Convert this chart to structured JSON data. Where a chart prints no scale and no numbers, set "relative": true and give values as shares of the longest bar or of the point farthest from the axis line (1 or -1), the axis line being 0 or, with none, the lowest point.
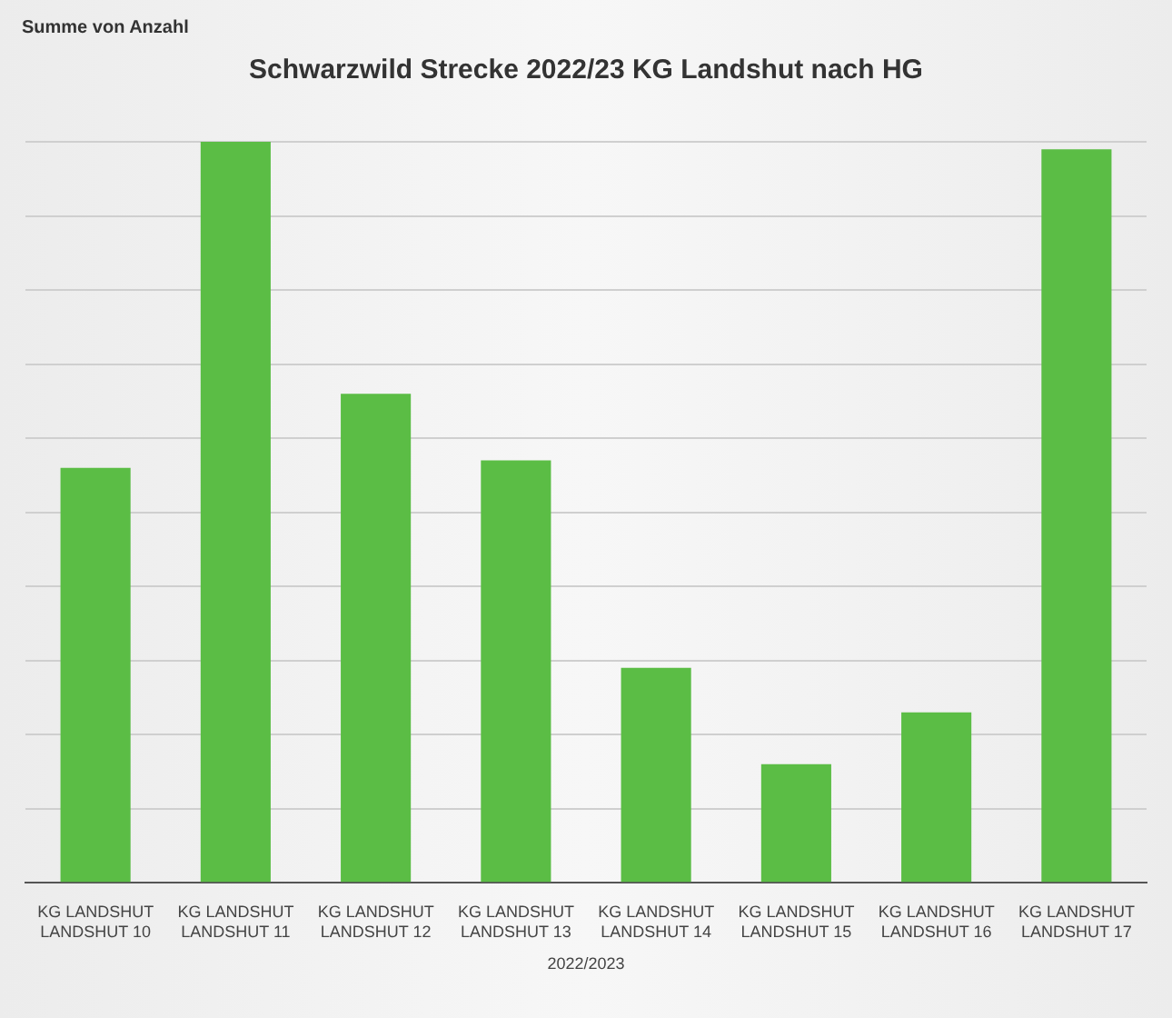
{
  "chart_data": {
    "type": "bar",
    "title": "Schwarzwild Strecke 2022/23 KG Landshut nach HG",
    "xlabel": "2022/2023",
    "annotations": [
      "Summe von Anzahl"
    ],
    "categories": [
      "KG LANDSHUT\nLANDSHUT 10",
      "KG LANDSHUT\nLANDSHUT 11",
      "KG LANDSHUT\nLANDSHUT 12",
      "KG LANDSHUT\nLANDSHUT 13",
      "KG LANDSHUT\nLANDSHUT 14",
      "KG LANDSHUT\nLANDSHUT 15",
      "KG LANDSHUT\nLANDSHUT 16",
      "KG LANDSHUT\nLANDSHUT 17"
    ],
    "values": [
      0.56,
      1,
      0.66,
      0.57,
      0.29,
      0.16,
      0.23,
      0.99
    ],
    "color": "#5bbd45",
    "relative": true,
    "grid": "y",
    "legend": false
  }
}
